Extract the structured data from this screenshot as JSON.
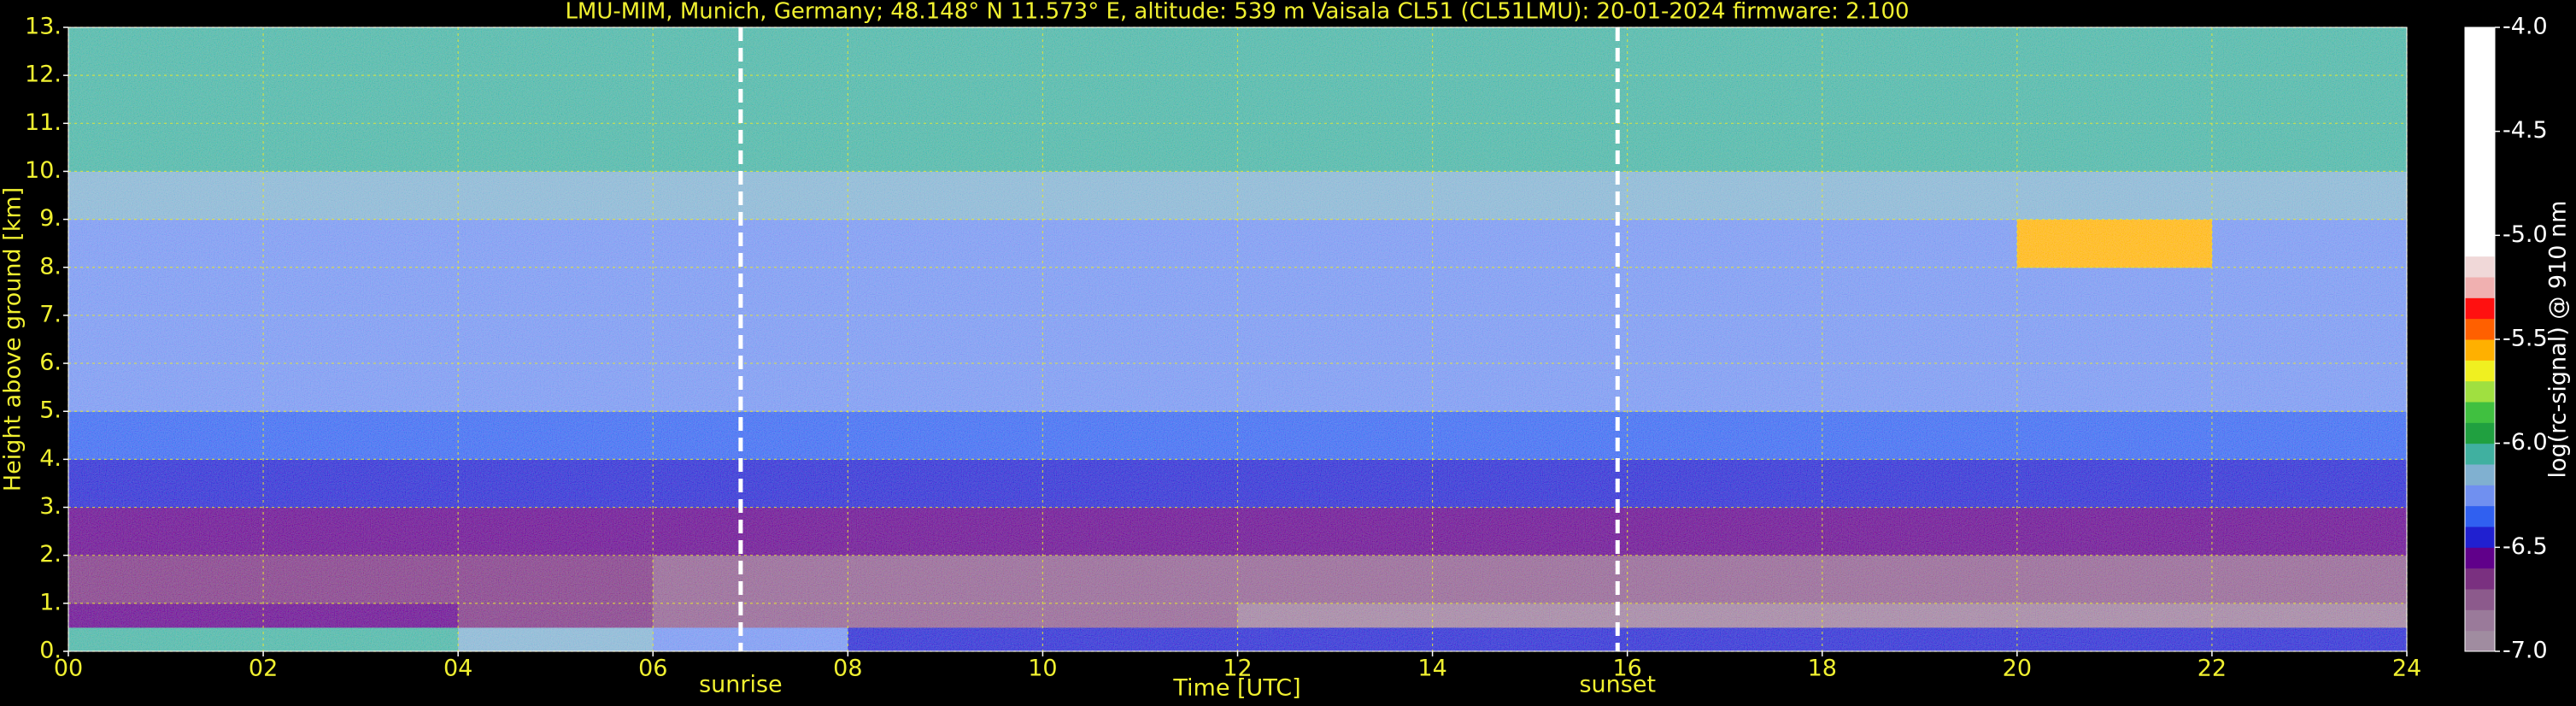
{
  "chart_data": {
    "type": "heatmap",
    "title": "LMU-MIM, Munich, Germany; 48.148° N 11.573° E, altitude: 539 m    Vaisala CL51 (CL51LMU): 20-01-2024    firmware: 2.100",
    "x_label": "Time [UTC]",
    "y_label": "Height above ground [km]",
    "colorbar_label": "log(rc-signal) @ 910 nm",
    "xlim": [
      0,
      24
    ],
    "ylim": [
      0,
      13
    ],
    "xticks": [
      {
        "value": 0,
        "label": "00"
      },
      {
        "value": 2,
        "label": "02"
      },
      {
        "value": 4,
        "label": "04"
      },
      {
        "value": 6,
        "label": "06"
      },
      {
        "value": 8,
        "label": "08"
      },
      10,
      12,
      14,
      16,
      18,
      20,
      22,
      24
    ],
    "yticks": [
      {
        "value": 0,
        "label": "0."
      },
      {
        "value": 1,
        "label": "1."
      },
      {
        "value": 2,
        "label": "2."
      },
      {
        "value": 3,
        "label": "3."
      },
      {
        "value": 4,
        "label": "4."
      },
      {
        "value": 5,
        "label": "5."
      },
      {
        "value": 6,
        "label": "6."
      },
      {
        "value": 7,
        "label": "7."
      },
      {
        "value": 8,
        "label": "8."
      },
      {
        "value": 9,
        "label": "9."
      },
      {
        "value": 10,
        "label": "10."
      },
      {
        "value": 11,
        "label": "11."
      },
      {
        "value": 12,
        "label": "12."
      },
      {
        "value": 13,
        "label": "13."
      }
    ],
    "grid": true,
    "clim": [
      -7,
      -4
    ],
    "cticks": [
      {
        "value": -7,
        "label": "-7.0"
      },
      {
        "value": -6.5,
        "label": "-6.5"
      },
      {
        "value": -6,
        "label": "-6.0"
      },
      {
        "value": -5.5,
        "label": "-5.5"
      },
      {
        "value": -5,
        "label": "-5.0"
      },
      {
        "value": -4.5,
        "label": "-4.5"
      },
      {
        "value": -4,
        "label": "-4.0"
      }
    ],
    "colorscale": [
      "#a08ca0",
      "#9a7a9a",
      "#8c5a8c",
      "#7a3080",
      "#60008a",
      "#2020d0",
      "#3060f0",
      "#7090f0",
      "#80b0d0",
      "#40b0a0",
      "#20a040",
      "#40c040",
      "#a0e040",
      "#f0f020",
      "#ffb000",
      "#ff6000",
      "#ff1010",
      "#f0b0b0",
      "#f0d8d8",
      "#ffffff",
      "#ffffff",
      "#ffffff",
      "#ffffff",
      "#ffffff",
      "#ffffff",
      "#ffffff",
      "#ffffff",
      "#ffffff",
      "#ffffff",
      "#ffffff"
    ],
    "x_bins": [
      0,
      2,
      4,
      6,
      8,
      10,
      12,
      14,
      16,
      18,
      20,
      22,
      24
    ],
    "y_bins": [
      0,
      0.5,
      1,
      2,
      3,
      4,
      5,
      6,
      7,
      8,
      9,
      10,
      11,
      12,
      13
    ],
    "z": [
      [
        -6.1,
        -6.1,
        -6.15,
        -6.3,
        -6.5,
        -6.5,
        -6.45,
        -6.45,
        -6.45,
        -6.5,
        -6.5,
        -6.5
      ],
      [
        -6.55,
        -6.6,
        -6.65,
        -6.75,
        -6.8,
        -6.8,
        -6.85,
        -6.85,
        -6.85,
        -6.85,
        -6.85,
        -6.85
      ],
      [
        -6.65,
        -6.65,
        -6.65,
        -6.7,
        -6.7,
        -6.7,
        -6.7,
        -6.7,
        -6.7,
        -6.7,
        -6.7,
        -6.7
      ],
      [
        -6.55,
        -6.55,
        -6.55,
        -6.55,
        -6.55,
        -6.55,
        -6.55,
        -6.55,
        -6.55,
        -6.55,
        -6.55,
        -6.55
      ],
      [
        -6.45,
        -6.45,
        -6.45,
        -6.45,
        -6.45,
        -6.45,
        -6.45,
        -6.45,
        -6.45,
        -6.45,
        -6.45,
        -6.45
      ],
      [
        -6.35,
        -6.35,
        -6.35,
        -6.35,
        -6.35,
        -6.35,
        -6.35,
        -6.35,
        -6.35,
        -6.35,
        -6.35,
        -6.35
      ],
      [
        -6.3,
        -6.3,
        -6.3,
        -6.3,
        -6.3,
        -6.3,
        -6.3,
        -6.3,
        -6.3,
        -6.3,
        -6.3,
        -6.3
      ],
      [
        -6.25,
        -6.25,
        -6.25,
        -6.25,
        -6.25,
        -6.25,
        -6.25,
        -6.25,
        -6.25,
        -6.25,
        -6.25,
        -6.25
      ],
      [
        -6.2,
        -6.2,
        -6.2,
        -6.2,
        -6.2,
        -6.2,
        -6.2,
        -6.2,
        -6.2,
        -6.2,
        -6.2,
        -6.2
      ],
      [
        -6.2,
        -6.2,
        -6.2,
        -6.2,
        -6.2,
        -6.2,
        -6.2,
        -6.2,
        -6.2,
        -6.2,
        -5.6,
        -6.2
      ],
      [
        -6.15,
        -6.15,
        -6.15,
        -6.15,
        -6.15,
        -6.15,
        -6.15,
        -6.15,
        -6.15,
        -6.15,
        -6.15,
        -6.15
      ],
      [
        -6.1,
        -6.1,
        -6.1,
        -6.1,
        -6.1,
        -6.1,
        -6.1,
        -6.1,
        -6.1,
        -6.1,
        -6.1,
        -6.1
      ],
      [
        -6.1,
        -6.1,
        -6.1,
        -6.1,
        -6.1,
        -6.1,
        -6.1,
        -6.1,
        -6.1,
        -6.1,
        -6.1,
        -6.1
      ],
      [
        -6.05,
        -6.05,
        -6.05,
        -6.05,
        -6.05,
        -6.05,
        -6.05,
        -6.05,
        -6.05,
        -6.05,
        -6.05,
        -6.05
      ]
    ],
    "annotations": [
      {
        "text": "sunrise",
        "x": 6.9
      },
      {
        "text": "sunset",
        "x": 15.9
      }
    ]
  }
}
